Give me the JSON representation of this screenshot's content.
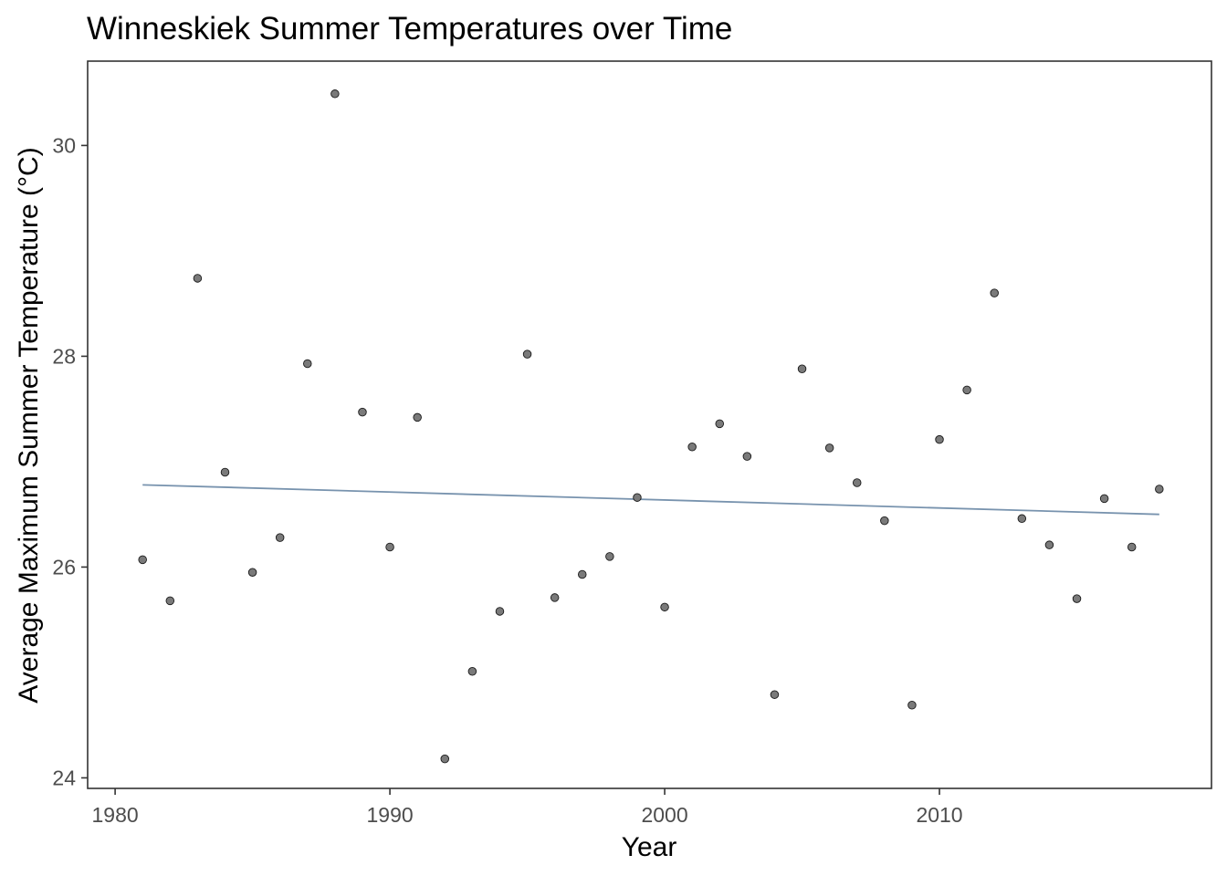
{
  "chart_data": {
    "type": "scatter",
    "title": "Winneskiek Summer Temperatures over Time",
    "xlabel": "Year",
    "ylabel": "Average Maximum Summer Temperature (°C)",
    "xlim": [
      1979.0,
      2019.9
    ],
    "ylim": [
      23.9,
      30.8
    ],
    "xticks": [
      1980,
      1990,
      2000,
      2010
    ],
    "yticks": [
      24,
      26,
      28,
      30
    ],
    "grid": false,
    "legend": "none",
    "point_color": "#7a7a7a",
    "point_outline": "#1a1a1a",
    "trend_color": "#7893ae",
    "x": [
      1981,
      1982,
      1983,
      1984,
      1985,
      1986,
      1987,
      1988,
      1989,
      1990,
      1991,
      1992,
      1993,
      1994,
      1995,
      1996,
      1997,
      1998,
      1999,
      2000,
      2001,
      2002,
      2003,
      2004,
      2005,
      2006,
      2007,
      2008,
      2009,
      2010,
      2011,
      2012,
      2013,
      2014,
      2015,
      2016,
      2017,
      2018
    ],
    "y": [
      26.07,
      25.68,
      28.74,
      26.9,
      25.95,
      26.28,
      27.93,
      30.49,
      27.47,
      26.19,
      27.42,
      24.18,
      25.01,
      25.58,
      28.02,
      25.71,
      25.93,
      26.1,
      26.66,
      25.62,
      27.14,
      27.36,
      27.05,
      24.79,
      27.88,
      27.13,
      26.8,
      26.44,
      24.69,
      27.21,
      27.68,
      28.6,
      26.46,
      26.21,
      25.7,
      26.65,
      26.19,
      26.74
    ],
    "trend": {
      "x": [
        1981,
        2018
      ],
      "y": [
        26.78,
        26.5
      ]
    }
  }
}
